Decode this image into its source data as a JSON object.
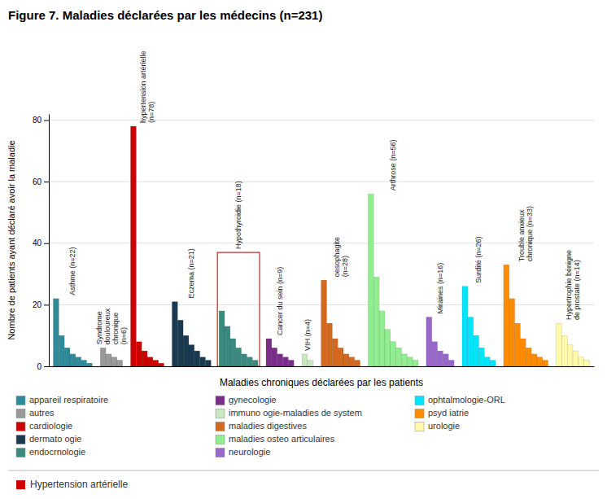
{
  "chart_data": {
    "type": "bar",
    "title": "Figure 7. Maladies déclarées par les médecins (n=231)",
    "xlabel": "Maladies chroniques déclarées par les patients",
    "ylabel": "Nombre de patients ayant déclaré avoir la maladie",
    "ylim": [
      0,
      82
    ],
    "yticks": [
      0,
      20,
      40,
      60,
      80
    ],
    "grid": true,
    "legend": "bottom",
    "tick_labels": "y",
    "series": [
      {
        "name": "appareil respiratoire",
        "color": "#2e8b9a",
        "values": [
          22,
          10,
          6,
          4,
          3,
          2,
          1
        ]
      },
      {
        "name": "autres",
        "color": "#999999",
        "values": [
          6,
          4,
          3,
          2
        ]
      },
      {
        "name": "cardiologie",
        "color": "#cc0000",
        "values": [
          78,
          8,
          5,
          3,
          2,
          1
        ]
      },
      {
        "name": "dermato ogie",
        "color": "#1a3a50",
        "values": [
          21,
          15,
          10,
          7,
          5,
          3,
          2
        ]
      },
      {
        "name": "endocrnologie",
        "color": "#3a8a80",
        "values": [
          18,
          13,
          9,
          6,
          4,
          3,
          2
        ],
        "highlight": {
          "height": 37,
          "color": "#cc3333"
        }
      },
      {
        "name": "gynecologie",
        "color": "#7b2d8b",
        "values": [
          9,
          6,
          4,
          3,
          2
        ]
      },
      {
        "name": "immuno ogie-maladies de system",
        "color": "#c8e8c0",
        "values": [
          4,
          2
        ]
      },
      {
        "name": "maladies digestives",
        "color": "#d2691e",
        "values": [
          28,
          14,
          9,
          6,
          4,
          3,
          2
        ]
      },
      {
        "name": "maladies osteo articulaires",
        "color": "#90ee90",
        "values": [
          56,
          29,
          18,
          12,
          8,
          6,
          4,
          3,
          2
        ]
      },
      {
        "name": "neurologie",
        "color": "#9966cc",
        "values": [
          16,
          8,
          5,
          4,
          2
        ]
      },
      {
        "name": "ophtalmologie-ORL",
        "color": "#00e5ff",
        "values": [
          26,
          16,
          10,
          6,
          3,
          2
        ]
      },
      {
        "name": "psyd iatrie",
        "color": "#ff8c00",
        "values": [
          33,
          22,
          14,
          9,
          6,
          4,
          3,
          2
        ]
      },
      {
        "name": "urologie",
        "color": "#fffaaa",
        "values": [
          14,
          10,
          7,
          5,
          3,
          2
        ]
      }
    ],
    "annotations": [
      "Asthme (n=22)",
      "Syndrome\ndouloureux\nchronique\n(n=6)",
      "hypertension artérielle\n(n=78)",
      "Eczema (n=21)",
      "Hypothyroidie (n=18)",
      "Cancer du sein (n=9)",
      "VIH (n=4)",
      "oesophagite\n(n=28)",
      "Arthrose (n=56)",
      "Miraines (n=16)",
      "Surdité (n=26)",
      "Trouble anxieux\nchronique (n=33)",
      "Hypertrophie bénigne\nde prostate (n=14)"
    ],
    "footer": {
      "text": "Hypertension artérielle",
      "color": "#cc0000"
    }
  }
}
